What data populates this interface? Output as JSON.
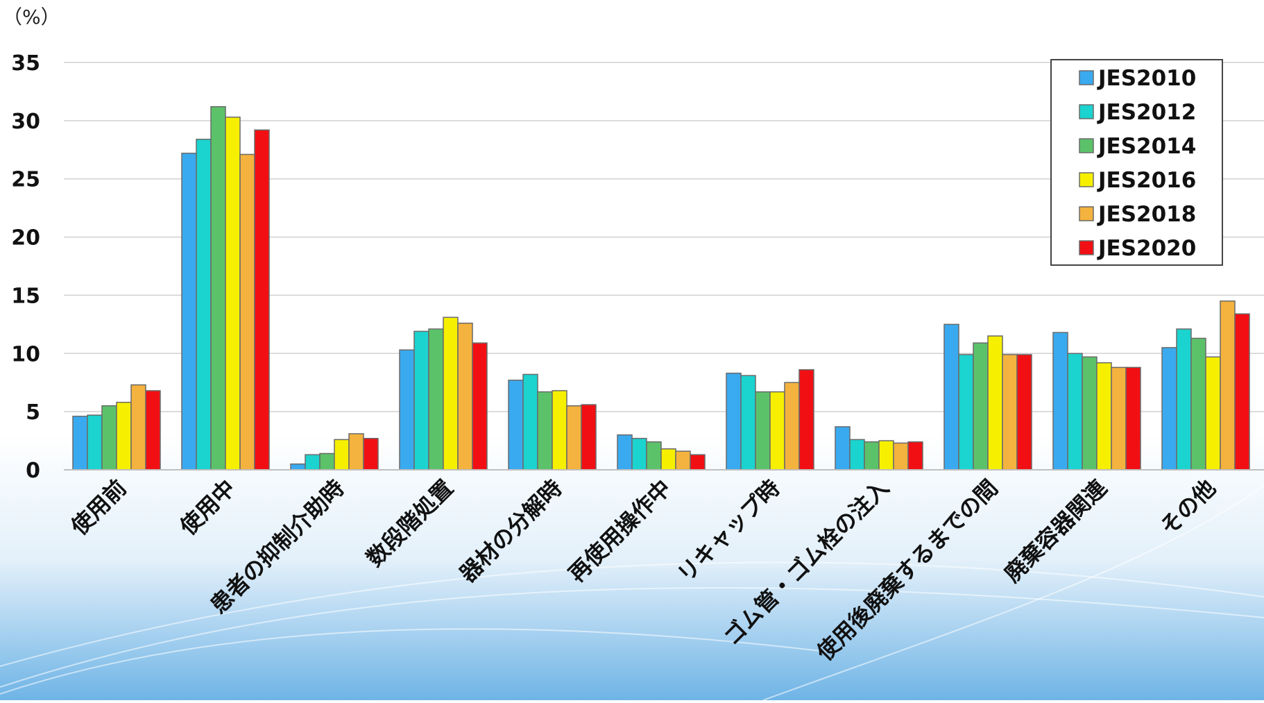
{
  "chart_data": {
    "type": "bar",
    "title": "",
    "unit_label": "（%）",
    "xlabel": "",
    "ylabel": "",
    "ylim": [
      0,
      35
    ],
    "yticks": [
      "0",
      "5",
      "10",
      "15",
      "20",
      "25",
      "30",
      "35"
    ],
    "grid": true,
    "legend_position": "top-right",
    "categories": [
      "使用前",
      "使用中",
      "患者の抑制介助時",
      "数段階処置",
      "器材の分解時",
      "再使用操作中",
      "リキャップ時",
      "ゴム管・ゴム栓の注入",
      "使用後廃棄するまでの間",
      "廃棄容器関連",
      "その他"
    ],
    "series": [
      {
        "name": "JES2010",
        "color": "#3aaaf0",
        "values": [
          4.6,
          27.2,
          0.5,
          10.3,
          7.7,
          3.0,
          8.3,
          3.7,
          12.5,
          11.8,
          10.5
        ]
      },
      {
        "name": "JES2012",
        "color": "#1bd3cf",
        "values": [
          4.7,
          28.4,
          1.3,
          11.9,
          8.2,
          2.7,
          8.1,
          2.6,
          9.9,
          10.0,
          12.1
        ]
      },
      {
        "name": "JES2014",
        "color": "#5cc26a",
        "values": [
          5.5,
          31.2,
          1.4,
          12.1,
          6.7,
          2.4,
          6.7,
          2.4,
          10.9,
          9.7,
          11.3
        ]
      },
      {
        "name": "JES2016",
        "color": "#f6f000",
        "values": [
          5.8,
          30.3,
          2.6,
          13.1,
          6.8,
          1.8,
          6.7,
          2.5,
          11.5,
          9.2,
          9.7
        ]
      },
      {
        "name": "JES2018",
        "color": "#f4b23e",
        "values": [
          7.3,
          27.1,
          3.1,
          12.6,
          5.5,
          1.6,
          7.5,
          2.3,
          9.9,
          8.8,
          14.5
        ]
      },
      {
        "name": "JES2020",
        "color": "#f20f13",
        "values": [
          6.8,
          29.2,
          2.7,
          10.9,
          5.6,
          1.3,
          8.6,
          2.4,
          9.9,
          8.8,
          13.4
        ]
      }
    ]
  }
}
